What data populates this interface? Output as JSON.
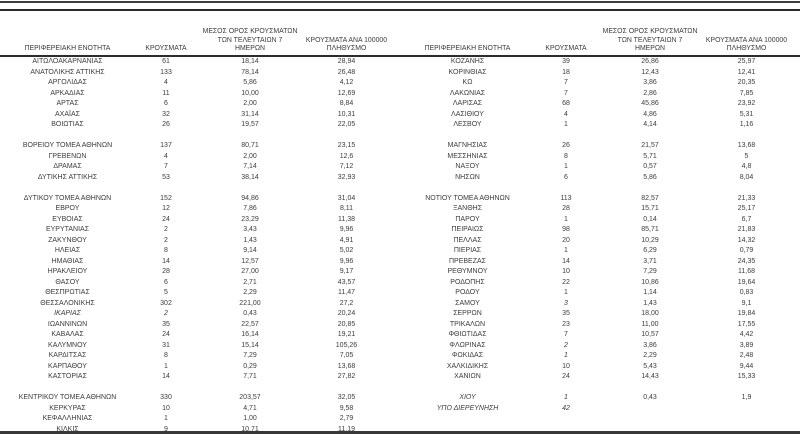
{
  "document": {
    "kind": "regional-covid-cases-table",
    "text_color": "#3c3c3c",
    "rule_color": "#2c2c2c",
    "columns": {
      "region": "ΠΕΡΙΦΕΡΕΙΑΚΗ ΕΝΟΤΗΤΑ",
      "cases": "ΚΡΟΥΣΜΑΤΑ",
      "avg7": "ΜΕΣΟΣ ΟΡΟΣ ΚΡΟΥΣΜΑΤΩΝ\nΤΩΝ ΤΕΛΕΥΤΑΙΩΝ 7\nΗΜΕΡΩΝ",
      "per100k": "ΚΡΟΥΣΜΑΤΑ ΑΝΑ 100000\nΠΛΗΘΥΣΜΟ"
    },
    "left_rows": [
      {
        "region": "ΑΙΤΩΛΟΑΚΑΡΝΑΝΙΑΣ",
        "cases": "61",
        "avg7": "18,14",
        "per100k": "28,94"
      },
      {
        "region": "ΑΝΑΤΟΛΙΚΗΣ ΑΤΤΙΚΗΣ",
        "cases": "133",
        "avg7": "78,14",
        "per100k": "26,48"
      },
      {
        "region": "ΑΡΓΟΛΙΔΑΣ",
        "cases": "4",
        "avg7": "5,86",
        "per100k": "4,12"
      },
      {
        "region": "ΑΡΚΑΔΙΑΣ",
        "cases": "11",
        "avg7": "10,00",
        "per100k": "12,69"
      },
      {
        "region": "ΑΡΤΑΣ",
        "cases": "6",
        "avg7": "2,00",
        "per100k": "8,84"
      },
      {
        "region": "ΑΧΑΪΑΣ",
        "cases": "32",
        "avg7": "31,14",
        "per100k": "10,31"
      },
      {
        "region": "ΒΟΙΩΤΙΑΣ",
        "cases": "26",
        "avg7": "19,57",
        "per100k": "22,05"
      },
      {
        "blank": true
      },
      {
        "region": "ΒΟΡΕΙΟΥ ΤΟΜΕΑ ΑΘΗΝΩΝ",
        "cases": "137",
        "avg7": "80,71",
        "per100k": "23,15"
      },
      {
        "region": "ΓΡΕΒΕΝΩΝ",
        "cases": "4",
        "avg7": "2,00",
        "per100k": "12,6"
      },
      {
        "region": "ΔΡΑΜΑΣ",
        "cases": "7",
        "avg7": "7,14",
        "per100k": "7,12"
      },
      {
        "region": "ΔΥΤΙΚΗΣ ΑΤΤΙΚΗΣ",
        "cases": "53",
        "avg7": "38,14",
        "per100k": "32,93"
      },
      {
        "blank": true
      },
      {
        "region": "ΔΥΤΙΚΟΥ ΤΟΜΕΑ ΑΘΗΝΩΝ",
        "cases": "152",
        "avg7": "94,86",
        "per100k": "31,04"
      },
      {
        "region": "ΕΒΡΟΥ",
        "cases": "12",
        "avg7": "7,86",
        "per100k": "8,11"
      },
      {
        "region": "ΕΥΒΟΙΑΣ",
        "cases": "24",
        "avg7": "23,29",
        "per100k": "11,38"
      },
      {
        "region": "ΕΥΡΥΤΑΝΙΑΣ",
        "cases": "2",
        "avg7": "3,43",
        "per100k": "9,96"
      },
      {
        "region": "ΖΑΚΥΝΘΟΥ",
        "cases": "2",
        "avg7": "1,43",
        "per100k": "4,91"
      },
      {
        "region": "ΗΛΕΙΑΣ",
        "cases": "8",
        "avg7": "9,14",
        "per100k": "5,02"
      },
      {
        "region": "ΗΜΑΘΙΑΣ",
        "cases": "14",
        "avg7": "12,57",
        "per100k": "9,96"
      },
      {
        "region": "ΗΡΑΚΛΕΙΟΥ",
        "cases": "28",
        "avg7": "27,00",
        "per100k": "9,17"
      },
      {
        "region": "ΘΑΣΟΥ",
        "cases": "6",
        "avg7": "2,71",
        "per100k": "43,57"
      },
      {
        "region": "ΘΕΣΠΡΩΤΙΑΣ",
        "cases": "5",
        "avg7": "2,29",
        "per100k": "11,47"
      },
      {
        "region": "ΘΕΣΣΑΛΟΝΙΚΗΣ",
        "cases": "302",
        "avg7": "221,00",
        "per100k": "27,2"
      },
      {
        "region": "ΙΚΑΡΙΑΣ",
        "cases": "2",
        "avg7": "0,43",
        "per100k": "20,24",
        "italic": true
      },
      {
        "region": "ΙΩΑΝΝΙΝΩΝ",
        "cases": "35",
        "avg7": "22,57",
        "per100k": "20,85"
      },
      {
        "region": "ΚΑΒΑΛΑΣ",
        "cases": "24",
        "avg7": "16,14",
        "per100k": "19,21"
      },
      {
        "region": "ΚΑΛΥΜΝΟΥ",
        "cases": "31",
        "avg7": "15,14",
        "per100k": "105,26"
      },
      {
        "region": "ΚΑΡΔΙΤΣΑΣ",
        "cases": "8",
        "avg7": "7,29",
        "per100k": "7,05"
      },
      {
        "region": "ΚΑΡΠΑΘΟΥ",
        "cases": "1",
        "avg7": "0,29",
        "per100k": "13,68"
      },
      {
        "region": "ΚΑΣΤΟΡΙΑΣ",
        "cases": "14",
        "avg7": "7,71",
        "per100k": "27,82"
      },
      {
        "blank": true
      },
      {
        "region": "ΚΕΝΤΡΙΚΟΥ ΤΟΜΕΑ ΑΘΗΝΩΝ",
        "cases": "330",
        "avg7": "203,57",
        "per100k": "32,05"
      },
      {
        "region": "ΚΕΡΚΥΡΑΣ",
        "cases": "10",
        "avg7": "4,71",
        "per100k": "9,58"
      },
      {
        "region": "ΚΕΦΑΛΛΗΝΙΑΣ",
        "cases": "1",
        "avg7": "1,00",
        "per100k": "2,79"
      },
      {
        "region": "ΚΙΛΚΙΣ",
        "cases": "9",
        "avg7": "10,71",
        "per100k": "11,19"
      }
    ],
    "right_rows": [
      {
        "region": "ΚΟΖΑΝΗΣ",
        "cases": "39",
        "avg7": "26,86",
        "per100k": "25,97"
      },
      {
        "region": "ΚΟΡΙΝΘΙΑΣ",
        "cases": "18",
        "avg7": "12,43",
        "per100k": "12,41"
      },
      {
        "region": "ΚΩ",
        "cases": "7",
        "avg7": "3,86",
        "per100k": "20,35"
      },
      {
        "region": "ΛΑΚΩΝΙΑΣ",
        "cases": "7",
        "avg7": "2,86",
        "per100k": "7,85"
      },
      {
        "region": "ΛΑΡΙΣΑΣ",
        "cases": "68",
        "avg7": "45,86",
        "per100k": "23,92"
      },
      {
        "region": "ΛΑΣΙΘΙΟΥ",
        "cases": "4",
        "avg7": "4,86",
        "per100k": "5,31"
      },
      {
        "region": "ΛΕΣΒΟΥ",
        "cases": "1",
        "avg7": "4,14",
        "per100k": "1,16"
      },
      {
        "blank": true
      },
      {
        "region": "ΜΑΓΝΗΣΙΑΣ",
        "cases": "26",
        "avg7": "21,57",
        "per100k": "13,68"
      },
      {
        "region": "ΜΕΣΣΗΝΙΑΣ",
        "cases": "8",
        "avg7": "5,71",
        "per100k": "5"
      },
      {
        "region": "ΝΑΞΟΥ",
        "cases": "1",
        "avg7": "0,57",
        "per100k": "4,8"
      },
      {
        "region": "ΝΗΣΩΝ",
        "cases": "6",
        "avg7": "5,86",
        "per100k": "8,04"
      },
      {
        "blank": true
      },
      {
        "region": "ΝΟΤΙΟΥ ΤΟΜΕΑ ΑΘΗΝΩΝ",
        "cases": "113",
        "avg7": "82,57",
        "per100k": "21,33"
      },
      {
        "region": "ΞΑΝΘΗΣ",
        "cases": "28",
        "avg7": "15,71",
        "per100k": "25,17"
      },
      {
        "region": "ΠΑΡΟΥ",
        "cases": "1",
        "avg7": "0,14",
        "per100k": "6,7"
      },
      {
        "region": "ΠΕΙΡΑΙΩΣ",
        "cases": "98",
        "avg7": "85,71",
        "per100k": "21,83"
      },
      {
        "region": "ΠΕΛΛΑΣ",
        "cases": "20",
        "avg7": "10,29",
        "per100k": "14,32"
      },
      {
        "region": "ΠΙΕΡΙΑΣ",
        "cases": "1",
        "avg7": "6,29",
        "per100k": "0,79"
      },
      {
        "region": "ΠΡΕΒΕΖΑΣ",
        "cases": "14",
        "avg7": "3,71",
        "per100k": "24,35"
      },
      {
        "region": "ΡΕΘΥΜΝΟΥ",
        "cases": "10",
        "avg7": "7,29",
        "per100k": "11,68"
      },
      {
        "region": "ΡΟΔΟΠΗΣ",
        "cases": "22",
        "avg7": "10,86",
        "per100k": "19,64"
      },
      {
        "region": "ΡΟΔΟΥ",
        "cases": "1",
        "avg7": "1,14",
        "per100k": "0,83"
      },
      {
        "region": "ΣΑΜΟΥ",
        "cases": "3",
        "avg7": "1,43",
        "per100k": "9,1",
        "italic_cases": true
      },
      {
        "region": "ΣΕΡΡΩΝ",
        "cases": "35",
        "avg7": "18,00",
        "per100k": "19,84"
      },
      {
        "region": "ΤΡΙΚΑΛΩΝ",
        "cases": "23",
        "avg7": "11,00",
        "per100k": "17,55"
      },
      {
        "region": "ΦΘΙΩΤΙΔΑΣ",
        "cases": "7",
        "avg7": "10,57",
        "per100k": "4,42"
      },
      {
        "region": "ΦΛΩΡΙΝΑΣ",
        "cases": "2",
        "avg7": "3,86",
        "per100k": "3,89",
        "italic_cases": true
      },
      {
        "region": "ΦΩΚΙΔΑΣ",
        "cases": "1",
        "avg7": "2,29",
        "per100k": "2,48",
        "italic_cases": true
      },
      {
        "region": "ΧΑΛΚΙΔΙΚΗΣ",
        "cases": "10",
        "avg7": "5,43",
        "per100k": "9,44"
      },
      {
        "region": "ΧΑΝΙΩΝ",
        "cases": "24",
        "avg7": "14,43",
        "per100k": "15,33"
      },
      {
        "blank": true
      },
      {
        "region": "ΧΙΟΥ",
        "cases": "1",
        "avg7": "0,43",
        "per100k": "1,9",
        "italic": true
      },
      {
        "region": "ΥΠΟ ΔΙΕΡΕΥΝΗΣΗ",
        "cases": "42",
        "avg7": "",
        "per100k": "",
        "italic": true
      },
      {
        "blank": true
      },
      {
        "blank": true
      }
    ]
  }
}
